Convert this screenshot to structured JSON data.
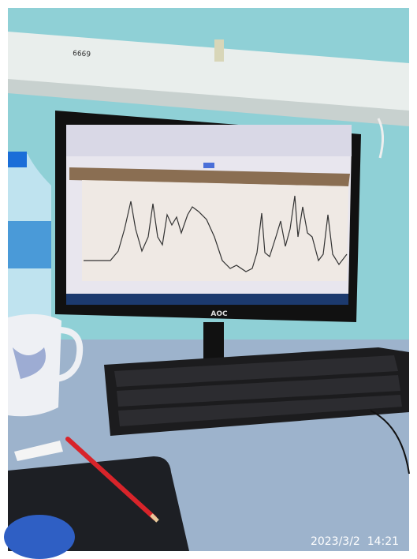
{
  "photo": {
    "shelf_label": "6669",
    "monitor_brand": "AOC",
    "timestamp": "2023/3/2  14:21"
  }
}
